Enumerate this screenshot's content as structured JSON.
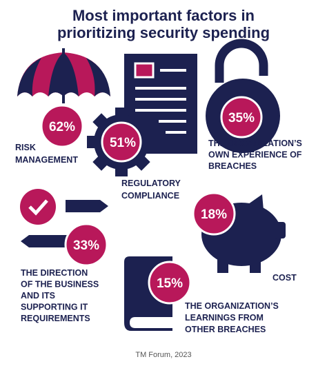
{
  "title": [
    "Most important factors in",
    "prioritizing security spending"
  ],
  "factors": [
    {
      "value": "62%",
      "label": [
        "RISK",
        "MANAGEMENT"
      ]
    },
    {
      "value": "51%",
      "label": [
        "REGULATORY",
        "COMPLIANCE"
      ]
    },
    {
      "value": "35%",
      "label": [
        "THE ORGANIZATION’S",
        "OWN EXPERIENCE OF",
        "BREACHES"
      ]
    },
    {
      "value": "33%",
      "label": [
        "THE DIRECTION",
        "OF THE BUSINESS",
        "AND ITS",
        "SUPPORTING IT",
        "REQUIREMENTS"
      ]
    },
    {
      "value": "18%",
      "label": [
        "COST"
      ]
    },
    {
      "value": "15%",
      "label": [
        "THE ORGANIZATION’S",
        "LEARNINGS FROM",
        "OTHER BREACHES"
      ]
    }
  ],
  "source": "TM Forum, 2023"
}
